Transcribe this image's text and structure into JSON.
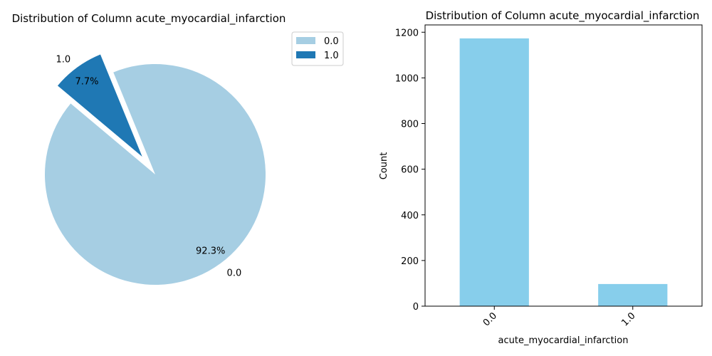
{
  "chart_data": [
    {
      "type": "pie",
      "title": "Distribution of Column acute_myocardial_infarction",
      "labels": [
        "0.0",
        "1.0"
      ],
      "values": [
        92.3,
        7.7
      ],
      "percent_labels": [
        "92.3%",
        "7.7%"
      ],
      "colors": [
        "#a6cee3",
        "#1f78b4"
      ],
      "explode": [
        0,
        0.2
      ],
      "start_angle_deg": 140,
      "legend": {
        "entries": [
          "0.0",
          "1.0"
        ],
        "placement": "upper-right-outside"
      }
    },
    {
      "type": "bar",
      "title": "Distribution of Column acute_myocardial_infarction",
      "categories": [
        "0.0",
        "1.0"
      ],
      "values": [
        1173,
        97
      ],
      "color": "#87ceeb",
      "xlabel": "acute_myocardial_infarction",
      "ylabel": "Count",
      "ylim": [
        0,
        1232
      ],
      "yticks": [
        0,
        200,
        400,
        600,
        800,
        1000,
        1200
      ],
      "xtick_rotation_deg": 45,
      "grid": false
    }
  ]
}
